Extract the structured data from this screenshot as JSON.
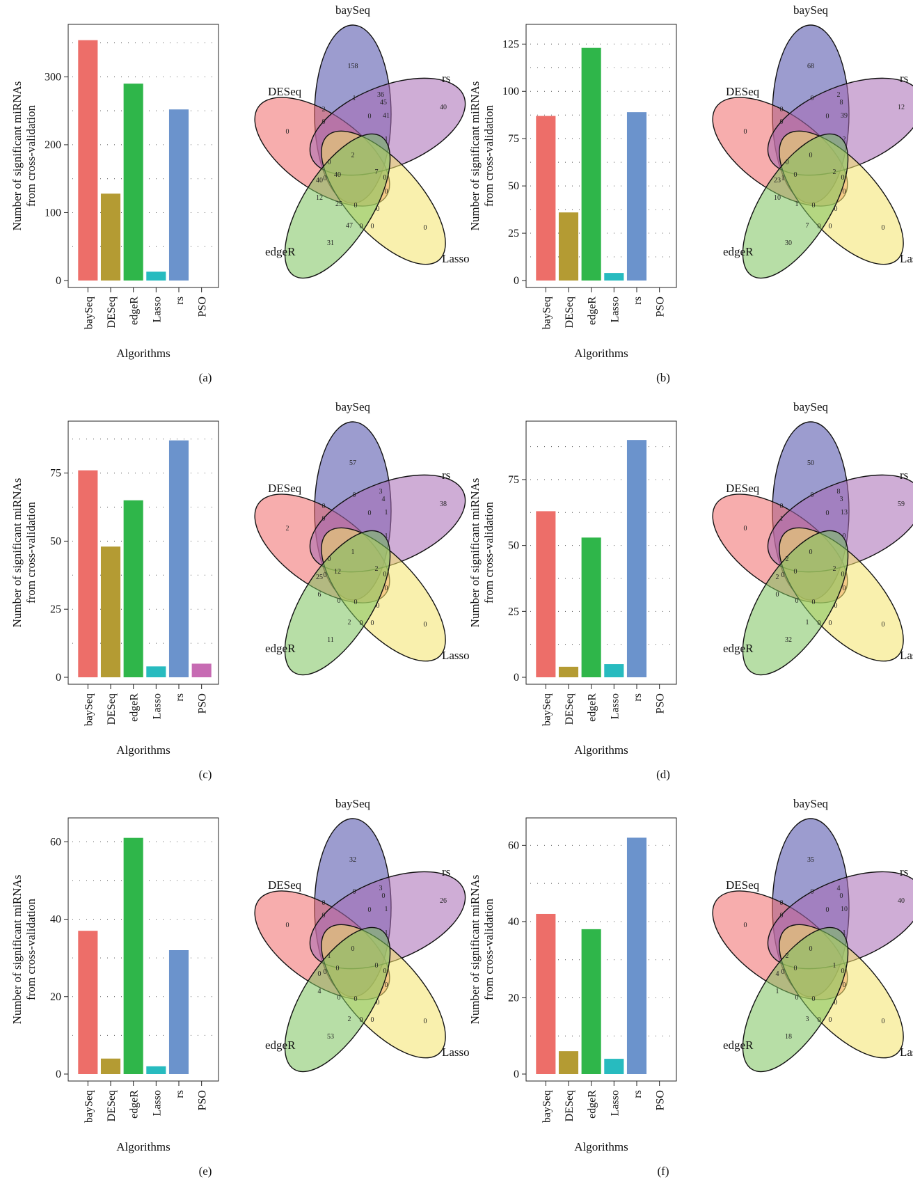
{
  "chart_data": [
    {
      "type": "bar",
      "panel_label": "(a)",
      "categories": [
        "baySeq",
        "DESeq",
        "edgeR",
        "Lasso",
        "rs",
        "PSO"
      ],
      "values": [
        354,
        128,
        290,
        13,
        252,
        0
      ],
      "colors": [
        "#ED6E69",
        "#B49B33",
        "#2FB64A",
        "#27BBBF",
        "#6B93CC",
        "#C76BB3"
      ],
      "xlabel": "Algorithms",
      "ylabel": "Number of significant miRNAs from cross-validation",
      "yticks": [
        0,
        100,
        200,
        300
      ],
      "ylim": [
        0,
        365
      ],
      "grid": true,
      "venn": {
        "sets": [
          "baySeq",
          "DESeq",
          "rs",
          "Lasso",
          "edgeR"
        ],
        "counts": [
          "158",
          "0",
          "40",
          "0",
          "31",
          "36",
          "1",
          "2",
          "0",
          "45",
          "0",
          "41",
          "1",
          "0",
          "0",
          "2",
          "7",
          "0",
          "0",
          "40",
          "40",
          "12",
          "25",
          "0",
          "0",
          "47",
          "0",
          "0"
        ]
      }
    },
    {
      "type": "bar",
      "panel_label": "(b)",
      "categories": [
        "baySeq",
        "DESeq",
        "edgeR",
        "Lasso",
        "rs",
        "PSO"
      ],
      "values": [
        87,
        36,
        123,
        4,
        89,
        0
      ],
      "colors": [
        "#ED6E69",
        "#B49B33",
        "#2FB64A",
        "#27BBBF",
        "#6B93CC",
        "#C76BB3"
      ],
      "xlabel": "Algorithms",
      "ylabel": "Number of significant miRNAs from cross-validation",
      "yticks": [
        0,
        25,
        50,
        75,
        100,
        125
      ],
      "ylim": [
        0,
        131
      ],
      "grid": true,
      "venn": {
        "sets": [
          "baySeq",
          "DESeq",
          "rs",
          "Lasso",
          "edgeR"
        ],
        "counts": [
          "68",
          "0",
          "12",
          "0",
          "30",
          "2",
          "0",
          "0",
          "0",
          "8",
          "0",
          "39",
          "2",
          "0",
          "0",
          "0",
          "2",
          "0",
          "1",
          "0",
          "23",
          "10",
          "1",
          "0",
          "0",
          "7",
          "0",
          "0"
        ]
      }
    },
    {
      "type": "bar",
      "panel_label": "(c)",
      "categories": [
        "baySeq",
        "DESeq",
        "edgeR",
        "Lasso",
        "rs",
        "PSO"
      ],
      "values": [
        76,
        48,
        65,
        4,
        87,
        5
      ],
      "colors": [
        "#ED6E69",
        "#B49B33",
        "#2FB64A",
        "#27BBBF",
        "#6B93CC",
        "#C76BB3"
      ],
      "xlabel": "Algorithms",
      "ylabel": "Number of significant miRNAs from cross-validation",
      "yticks": [
        0,
        25,
        50,
        75
      ],
      "ylim": [
        0,
        91
      ],
      "grid": true,
      "venn": {
        "sets": [
          "baySeq",
          "DESeq",
          "rs",
          "Lasso",
          "edgeR"
        ],
        "counts": [
          "57",
          "2",
          "38",
          "0",
          "11",
          "3",
          "0",
          "0",
          "0",
          "4",
          "0",
          "1",
          "1",
          "0",
          "0",
          "1",
          "2",
          "0",
          "0",
          "12",
          "25",
          "6",
          "0",
          "0",
          "0",
          "2",
          "0",
          "0"
        ]
      }
    },
    {
      "type": "bar",
      "panel_label": "(d)",
      "categories": [
        "baySeq",
        "DESeq",
        "edgeR",
        "Lasso",
        "rs",
        "PSO"
      ],
      "values": [
        63,
        4,
        53,
        5,
        90,
        0
      ],
      "colors": [
        "#ED6E69",
        "#B49B33",
        "#2FB64A",
        "#27BBBF",
        "#6B93CC",
        "#C76BB3"
      ],
      "xlabel": "Algorithms",
      "ylabel": "Number of significant miRNAs from cross-validation",
      "yticks": [
        0,
        25,
        50,
        75
      ],
      "ylim": [
        0,
        94
      ],
      "grid": true,
      "venn": {
        "sets": [
          "baySeq",
          "DESeq",
          "rs",
          "Lasso",
          "edgeR"
        ],
        "counts": [
          "50",
          "0",
          "59",
          "0",
          "32",
          "8",
          "0",
          "0",
          "1",
          "3",
          "0",
          "13",
          "0",
          "0",
          "0",
          "0",
          "2",
          "2",
          "0",
          "0",
          "2",
          "0",
          "0",
          "0",
          "0",
          "1",
          "0",
          "0"
        ]
      }
    },
    {
      "type": "bar",
      "panel_label": "(e)",
      "categories": [
        "baySeq",
        "DESeq",
        "edgeR",
        "Lasso",
        "rs",
        "PSO"
      ],
      "values": [
        37,
        4,
        61,
        2,
        32,
        0
      ],
      "colors": [
        "#ED6E69",
        "#B49B33",
        "#2FB64A",
        "#27BBBF",
        "#6B93CC",
        "#C76BB3"
      ],
      "xlabel": "Algorithms",
      "ylabel": "Number of significant miRNAs from cross-validation",
      "yticks": [
        0,
        20,
        40,
        60
      ],
      "ylim": [
        0,
        64
      ],
      "grid": true,
      "venn": {
        "sets": [
          "baySeq",
          "DESeq",
          "rs",
          "Lasso",
          "edgeR"
        ],
        "counts": [
          "32",
          "0",
          "26",
          "0",
          "53",
          "3",
          "0",
          "0",
          "0",
          "0",
          "0",
          "1",
          "1",
          "0",
          "0",
          "0",
          "0",
          "1",
          "0",
          "0",
          "0",
          "4",
          "0",
          "0",
          "0",
          "2",
          "0",
          "0"
        ]
      }
    },
    {
      "type": "bar",
      "panel_label": "(f)",
      "categories": [
        "baySeq",
        "DESeq",
        "edgeR",
        "Lasso",
        "rs",
        "PSO"
      ],
      "values": [
        42,
        6,
        38,
        4,
        62,
        0
      ],
      "colors": [
        "#ED6E69",
        "#B49B33",
        "#2FB64A",
        "#27BBBF",
        "#6B93CC",
        "#C76BB3"
      ],
      "xlabel": "Algorithms",
      "ylabel": "Number of significant miRNAs from cross-validation",
      "yticks": [
        0,
        20,
        40,
        60
      ],
      "ylim": [
        0,
        65
      ],
      "grid": true,
      "venn": {
        "sets": [
          "baySeq",
          "DESeq",
          "rs",
          "Lasso",
          "edgeR"
        ],
        "counts": [
          "35",
          "0",
          "40",
          "0",
          "18",
          "4",
          "0",
          "0",
          "0",
          "0",
          "0",
          "10",
          "1",
          "0",
          "0",
          "0",
          "1",
          "2",
          "0",
          "0",
          "4",
          "1",
          "0",
          "0",
          "0",
          "3",
          "0",
          "0"
        ]
      }
    }
  ]
}
